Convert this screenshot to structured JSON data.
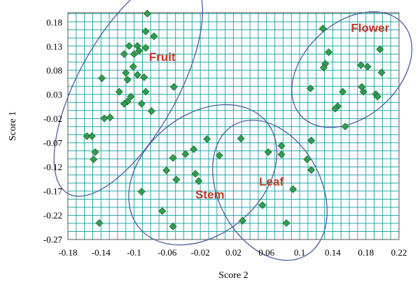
{
  "chart_data": {
    "type": "scatter",
    "xlabel": "Score 2",
    "ylabel": "Score 1",
    "xlim": [
      -0.18,
      0.22
    ],
    "ylim": [
      -0.27,
      0.2
    ],
    "x_ticks": [
      "-0.18",
      "-0.14",
      "-0.1",
      "-0.06",
      "-0.02",
      "0.02",
      "0.06",
      "0.1",
      "0.14",
      "0.18",
      "0.22"
    ],
    "y_ticks": [
      "0.18",
      "0.13",
      "0.08",
      "0.03",
      "-0.02",
      "-0.07",
      "-0.12",
      "-0.17",
      "-0.22",
      "-0.27"
    ],
    "x_tick_values": [
      -0.18,
      -0.14,
      -0.1,
      -0.06,
      -0.02,
      0.02,
      0.06,
      0.1,
      0.14,
      0.18,
      0.22
    ],
    "y_tick_values": [
      0.18,
      0.13,
      0.08,
      0.03,
      -0.02,
      -0.07,
      -0.12,
      -0.17,
      -0.22,
      -0.27
    ],
    "grid": true,
    "grid_x_step": 0.01,
    "grid_y_step": 0.0167,
    "colors": {
      "marker_fill": "#2e9e4f",
      "marker_stroke": "#1f5f2f",
      "ellipse": "#4a5fa0",
      "grid": "#2aa7a7",
      "label": "#c0392b"
    },
    "groups": [
      {
        "label": "Fruit",
        "label_pos": [
          -0.082,
          0.1
        ],
        "ellipse": {
          "cx": -0.107,
          "cy": 0.05,
          "rx": 0.15,
          "ry": 0.06,
          "angle_deg": -61
        },
        "points": [
          [
            -0.084,
            0.198
          ],
          [
            -0.096,
            0.131
          ],
          [
            -0.106,
            0.131
          ],
          [
            -0.086,
            0.161
          ],
          [
            -0.076,
            0.151
          ],
          [
            -0.094,
            0.121
          ],
          [
            -0.112,
            0.114
          ],
          [
            -0.1,
            0.114
          ],
          [
            -0.086,
            0.127
          ],
          [
            -0.101,
            0.088
          ],
          [
            -0.11,
            0.075
          ],
          [
            -0.108,
            0.061
          ],
          [
            -0.096,
            0.071
          ],
          [
            -0.088,
            0.066
          ],
          [
            -0.086,
            0.036
          ],
          [
            -0.118,
            0.036
          ],
          [
            -0.104,
            0.026
          ],
          [
            -0.108,
            0.016
          ],
          [
            -0.112,
            0.011
          ],
          [
            -0.091,
            0.011
          ],
          [
            -0.079,
            -0.004
          ],
          [
            -0.139,
            0.064
          ],
          [
            -0.052,
            0.046
          ],
          [
            -0.136,
            -0.019
          ],
          [
            -0.129,
            -0.017
          ],
          [
            -0.157,
            -0.056
          ],
          [
            -0.151,
            -0.056
          ],
          [
            -0.147,
            -0.089
          ],
          [
            -0.149,
            -0.104
          ],
          [
            -0.142,
            -0.236
          ]
        ]
      },
      {
        "label": "Stem",
        "label_pos": [
          -0.026,
          -0.185
        ],
        "ellipse": {
          "cx": -0.017,
          "cy": -0.136,
          "rx": 0.072,
          "ry": 0.1,
          "angle_deg": 50
        },
        "points": [
          [
            -0.012,
            -0.062
          ],
          [
            -0.028,
            -0.083
          ],
          [
            -0.038,
            -0.093
          ],
          [
            -0.053,
            -0.101
          ],
          [
            -0.061,
            -0.127
          ],
          [
            -0.026,
            -0.134
          ],
          [
            -0.022,
            -0.149
          ],
          [
            0.003,
            -0.096
          ],
          [
            0.029,
            -0.061
          ],
          [
            -0.049,
            -0.146
          ],
          [
            -0.091,
            -0.171
          ],
          [
            -0.066,
            -0.211
          ],
          [
            -0.053,
            -0.243
          ]
        ]
      },
      {
        "label": "Leaf",
        "label_pos": [
          0.051,
          -0.158
        ],
        "ellipse": {
          "cx": 0.064,
          "cy": -0.168,
          "rx": 0.09,
          "ry": 0.062,
          "angle_deg": 62
        },
        "points": [
          [
            0.078,
            -0.076
          ],
          [
            0.114,
            -0.065
          ],
          [
            0.062,
            -0.089
          ],
          [
            0.078,
            -0.094
          ],
          [
            0.109,
            -0.104
          ],
          [
            0.114,
            -0.126
          ],
          [
            0.092,
            -0.166
          ],
          [
            0.055,
            -0.199
          ],
          [
            0.084,
            -0.236
          ],
          [
            0.031,
            -0.231
          ]
        ]
      },
      {
        "label": "Flower",
        "label_pos": [
          0.162,
          0.16
        ],
        "ellipse": {
          "cx": 0.163,
          "cy": 0.082,
          "rx": 0.083,
          "ry": 0.057,
          "angle_deg": -42
        },
        "points": [
          [
            0.128,
            0.167
          ],
          [
            0.135,
            0.118
          ],
          [
            0.131,
            0.094
          ],
          [
            0.129,
            0.086
          ],
          [
            0.174,
            0.091
          ],
          [
            0.182,
            0.088
          ],
          [
            0.197,
            0.124
          ],
          [
            0.199,
            0.076
          ],
          [
            0.175,
            0.046
          ],
          [
            0.177,
            0.036
          ],
          [
            0.152,
            0.036
          ],
          [
            0.192,
            0.031
          ],
          [
            0.194,
            0.026
          ],
          [
            0.113,
            0.043
          ],
          [
            0.146,
            0.006
          ],
          [
            0.143,
            0.001
          ],
          [
            0.155,
            -0.036
          ]
        ]
      }
    ]
  }
}
